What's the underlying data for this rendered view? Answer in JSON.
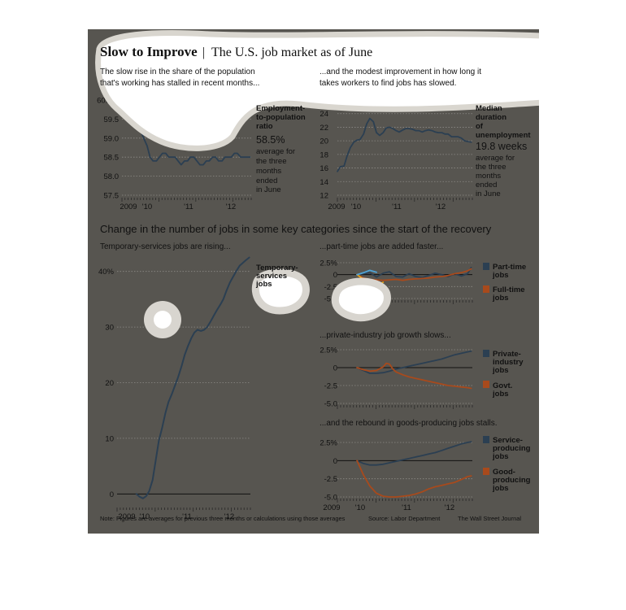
{
  "header": {
    "title": "Slow to Improve",
    "divider": "|",
    "subtitle": "The U.S. job market as of June"
  },
  "colors": {
    "panel_bg": "#575550",
    "navy_line": "#2b3f52",
    "orange_line": "#a84a1c",
    "light_blue_line": "#4fa3d6",
    "yellow_line": "#e7a417",
    "gridline": "#8d8b86"
  },
  "top_left": {
    "caption": [
      "The slow rise in the share of the population",
      "that's working has stalled in recent months..."
    ],
    "annotation_title": [
      "Employment-",
      "to-population",
      "ratio"
    ],
    "annotation_value": "58.5%",
    "annotation_note": [
      "average for",
      "the three",
      "months",
      "ended",
      "in June"
    ]
  },
  "top_right": {
    "caption": [
      "...and the modest improvement in how long it",
      "takes workers to find jobs has slowed."
    ],
    "annotation_title": [
      "Median",
      "duration",
      "of",
      "unemployment"
    ],
    "annotation_value": "19.8 weeks",
    "annotation_note": [
      "average for",
      "the three",
      "months",
      "ended",
      "in June"
    ]
  },
  "section_title": "Change in the number of jobs in some key categories since the start of the recovery",
  "footer": {
    "note": "Note: Figures are averages for previous three months or calculations using those averages",
    "source": "Source: Labor Department",
    "credit": "The Wall Street Journal"
  },
  "chart_data": [
    {
      "id": "emp_ratio",
      "type": "line",
      "x_ticks": [
        "2009",
        "'10",
        "'11",
        "'12"
      ],
      "y_ticks": [
        "60.0%",
        "59.5",
        "59.0",
        "58.5",
        "58.0",
        "57.5"
      ],
      "ylim": [
        57.5,
        60.0
      ],
      "grid": true,
      "series": [
        {
          "color": "#2b3f52",
          "x": [
            2009.5,
            2009.58,
            2009.67,
            2009.75,
            2009.83,
            2009.92,
            2010.0,
            2010.08,
            2010.17,
            2010.25,
            2010.33,
            2010.42,
            2010.5,
            2010.58,
            2010.67,
            2010.75,
            2010.83,
            2010.92,
            2011.0,
            2011.08,
            2011.17,
            2011.25,
            2011.33,
            2011.42,
            2011.5,
            2011.58,
            2011.67,
            2011.75,
            2011.83,
            2011.92,
            2012.0,
            2012.08,
            2012.17,
            2012.25,
            2012.33,
            2012.42
          ],
          "values": [
            59.2,
            59.0,
            58.8,
            58.5,
            58.4,
            58.4,
            58.5,
            58.6,
            58.6,
            58.5,
            58.5,
            58.5,
            58.4,
            58.3,
            58.4,
            58.4,
            58.5,
            58.5,
            58.4,
            58.3,
            58.3,
            58.4,
            58.4,
            58.5,
            58.5,
            58.4,
            58.4,
            58.5,
            58.5,
            58.5,
            58.6,
            58.6,
            58.5,
            58.5,
            58.5,
            58.5
          ]
        },
        {
          "color": "#4fa3d6",
          "x": [
            2009.0,
            2009.08,
            2009.17,
            2009.25,
            2009.33,
            2009.42,
            2009.5
          ],
          "values": [
            60.0,
            59.9,
            59.8,
            59.7,
            59.5,
            59.4,
            59.2
          ]
        }
      ]
    },
    {
      "id": "unemp_duration",
      "type": "line",
      "x_ticks": [
        "2009",
        "'10",
        "'11",
        "'12"
      ],
      "y_ticks": [
        "26 weeks",
        "24",
        "22",
        "20",
        "18",
        "16",
        "14",
        "12"
      ],
      "ylim": [
        12,
        26
      ],
      "grid": true,
      "series": [
        {
          "color": "#2b3f52",
          "x": [
            2009.0,
            2009.08,
            2009.17,
            2009.25,
            2009.33,
            2009.42,
            2009.5,
            2009.58,
            2009.67,
            2009.75,
            2009.83,
            2009.92,
            2010.0,
            2010.08,
            2010.17,
            2010.25,
            2010.33,
            2010.42,
            2010.5,
            2010.58,
            2010.67,
            2010.75,
            2010.83,
            2010.92,
            2011.0,
            2011.08,
            2011.17,
            2011.25,
            2011.33,
            2011.42,
            2011.5,
            2011.58,
            2011.67,
            2011.75,
            2011.83,
            2011.92,
            2012.0,
            2012.08,
            2012.17,
            2012.25,
            2012.33,
            2012.42
          ],
          "values": [
            15.5,
            16.2,
            16.3,
            17.8,
            19.0,
            19.8,
            20.1,
            20.2,
            21.0,
            22.5,
            23.3,
            22.8,
            21.2,
            20.8,
            21.2,
            21.9,
            22.0,
            21.8,
            21.5,
            21.3,
            21.6,
            21.8,
            21.8,
            21.7,
            21.5,
            21.5,
            21.3,
            21.5,
            21.6,
            21.5,
            21.3,
            21.2,
            21.2,
            21.0,
            21.0,
            20.6,
            20.6,
            20.6,
            20.4,
            20.0,
            19.9,
            19.8
          ]
        }
      ]
    },
    {
      "id": "temp_services",
      "type": "line",
      "x_ticks": [
        "2009",
        "'10",
        "'11",
        "'12"
      ],
      "y_ticks": [
        "40%",
        "30",
        "20",
        "10",
        "0"
      ],
      "ylim": [
        -2,
        42
      ],
      "grid": true,
      "series": [
        {
          "name": "Temporary-services jobs",
          "color": "#2b3f52",
          "x": [
            2009.5,
            2009.58,
            2009.67,
            2009.75,
            2009.83,
            2009.92,
            2010.0,
            2010.08,
            2010.17,
            2010.25,
            2010.33,
            2010.42,
            2010.5,
            2010.58,
            2010.67,
            2010.75,
            2010.83,
            2010.92,
            2011.0,
            2011.08,
            2011.17,
            2011.25,
            2011.33,
            2011.42,
            2011.5,
            2011.58,
            2011.67,
            2011.75,
            2011.83,
            2011.92,
            2012.0,
            2012.08,
            2012.17,
            2012.25,
            2012.33,
            2012.42
          ],
          "values": [
            0,
            -0.5,
            -0.8,
            -0.4,
            0.5,
            2.5,
            6,
            9.5,
            12,
            14.5,
            16.5,
            18,
            19.5,
            21,
            23,
            25,
            26.5,
            28,
            29,
            29.5,
            29.3,
            29.5,
            30,
            31,
            32,
            33,
            34,
            35,
            36.5,
            38,
            39,
            40,
            41,
            41.5,
            42,
            42.5
          ]
        }
      ]
    },
    {
      "id": "part_full_time",
      "type": "line",
      "x_ticks": [
        "2009",
        "'10",
        "'11",
        "'12"
      ],
      "y_ticks": [
        "2.5%",
        "0",
        "-2.5",
        "-5.0"
      ],
      "ylim": [
        -5.0,
        2.5
      ],
      "grid": true,
      "series": [
        {
          "name": "Part-time jobs",
          "color": "#2b3f52",
          "x": [
            2009.5,
            2009.67,
            2009.83,
            2010.0,
            2010.17,
            2010.33,
            2010.5,
            2010.67,
            2010.83,
            2011.0,
            2011.17,
            2011.33,
            2011.5,
            2011.67,
            2011.83,
            2012.0,
            2012.17,
            2012.33,
            2012.42
          ],
          "values": [
            0,
            0.2,
            0.4,
            -0.5,
            0.3,
            0.6,
            -0.4,
            -0.5,
            0.2,
            -0.4,
            -0.6,
            -0.2,
            0.3,
            0.0,
            -0.4,
            0.2,
            -0.3,
            0.2,
            1.5
          ]
        },
        {
          "name": "Full-time jobs",
          "color": "#a84a1c",
          "x": [
            2009.5,
            2009.67,
            2009.83,
            2010.0,
            2010.17,
            2010.33,
            2010.5,
            2010.67,
            2010.83,
            2011.0,
            2011.17,
            2011.33,
            2011.5,
            2011.67,
            2011.83,
            2012.0,
            2012.17,
            2012.33,
            2012.42
          ],
          "values": [
            0,
            -0.7,
            -1.0,
            -1.1,
            -1.2,
            -1.1,
            -1.0,
            -1.2,
            -1.0,
            -0.9,
            -0.8,
            -0.7,
            -0.5,
            -0.4,
            -0.2,
            0.2,
            0.4,
            0.8,
            1.2
          ]
        },
        {
          "color": "#e7a417",
          "x": [
            2009.5,
            2009.67,
            2009.83,
            2010.0,
            2010.17
          ],
          "values": [
            0,
            -1.0,
            -1.9,
            -2.2,
            -1.6
          ]
        },
        {
          "color": "#4fa3d6",
          "x": [
            2009.5,
            2009.67,
            2009.83,
            2010.0
          ],
          "values": [
            0,
            0.4,
            0.9,
            0.5
          ]
        }
      ]
    },
    {
      "id": "private_govt",
      "type": "line",
      "x_ticks": [
        "2009",
        "'10",
        "'11",
        "'12"
      ],
      "y_ticks": [
        "2.5%",
        "0",
        "-2.5",
        "-5.0"
      ],
      "ylim": [
        -5.0,
        2.5
      ],
      "grid": true,
      "series": [
        {
          "name": "Private-industry jobs",
          "color": "#2b3f52",
          "x": [
            2009.5,
            2009.67,
            2009.83,
            2010.0,
            2010.17,
            2010.33,
            2010.5,
            2010.67,
            2010.83,
            2011.0,
            2011.17,
            2011.33,
            2011.5,
            2011.67,
            2011.83,
            2012.0,
            2012.17,
            2012.33,
            2012.42
          ],
          "values": [
            0,
            -0.4,
            -0.8,
            -0.8,
            -0.7,
            -0.5,
            -0.2,
            0.0,
            0.2,
            0.4,
            0.6,
            0.8,
            1.0,
            1.2,
            1.5,
            1.8,
            2.0,
            2.2,
            2.3
          ]
        },
        {
          "name": "Govt. jobs",
          "color": "#a84a1c",
          "x": [
            2009.5,
            2009.67,
            2009.83,
            2010.0,
            2010.17,
            2010.25,
            2010.33,
            2010.42,
            2010.5,
            2010.67,
            2010.83,
            2011.0,
            2011.17,
            2011.33,
            2011.5,
            2011.67,
            2011.83,
            2012.0,
            2012.17,
            2012.33,
            2012.42
          ],
          "values": [
            0,
            -0.3,
            -0.5,
            -0.4,
            0.1,
            0.6,
            0.5,
            -0.2,
            -0.6,
            -1.0,
            -1.3,
            -1.5,
            -1.7,
            -1.9,
            -2.1,
            -2.3,
            -2.5,
            -2.6,
            -2.7,
            -2.8,
            -2.9
          ]
        }
      ]
    },
    {
      "id": "service_goods",
      "type": "line",
      "x_ticks": [
        "2009",
        "'10",
        "'11",
        "'12"
      ],
      "y_ticks": [
        "2.5%",
        "0",
        "-2.5",
        "-5.0"
      ],
      "ylim": [
        -5.0,
        2.5
      ],
      "grid": true,
      "series": [
        {
          "name": "Service-producing jobs",
          "color": "#2b3f52",
          "x": [
            2009.5,
            2009.67,
            2009.83,
            2010.0,
            2010.17,
            2010.33,
            2010.5,
            2010.67,
            2010.83,
            2011.0,
            2011.17,
            2011.33,
            2011.5,
            2011.67,
            2011.83,
            2012.0,
            2012.17,
            2012.33,
            2012.42
          ],
          "values": [
            0,
            -0.4,
            -0.6,
            -0.6,
            -0.5,
            -0.3,
            -0.1,
            0.1,
            0.3,
            0.5,
            0.7,
            0.9,
            1.1,
            1.4,
            1.7,
            2.0,
            2.3,
            2.5,
            2.6
          ]
        },
        {
          "name": "Good-producing jobs",
          "color": "#a84a1c",
          "x": [
            2009.5,
            2009.67,
            2009.83,
            2010.0,
            2010.17,
            2010.33,
            2010.5,
            2010.67,
            2010.83,
            2011.0,
            2011.17,
            2011.33,
            2011.5,
            2011.67,
            2011.83,
            2012.0,
            2012.17,
            2012.33,
            2012.42
          ],
          "values": [
            0,
            -2.0,
            -3.5,
            -4.5,
            -4.9,
            -5.0,
            -5.0,
            -4.9,
            -4.8,
            -4.6,
            -4.3,
            -3.9,
            -3.6,
            -3.4,
            -3.2,
            -3.0,
            -2.6,
            -2.2,
            -2.1
          ]
        }
      ]
    }
  ]
}
